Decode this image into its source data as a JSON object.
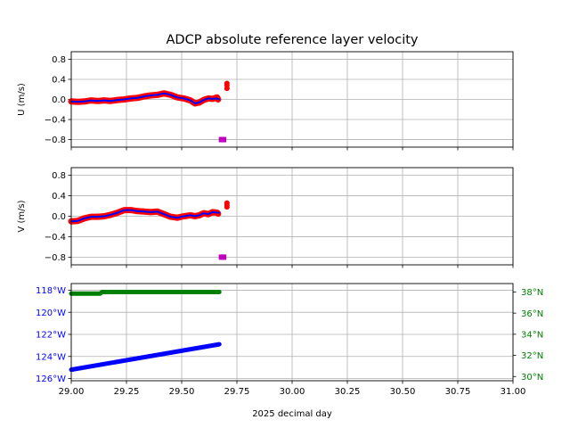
{
  "title": "ADCP absolute reference layer velocity",
  "colors": {
    "u_points": "#ff0000",
    "u_line": "#0000ff",
    "flag": "#bf00bf",
    "lon": "#0000ff",
    "lat": "#008000",
    "grid": "#b0b0b0"
  },
  "chart_data": [
    {
      "panel": "u",
      "type": "line",
      "ylabel": "U (m/s)",
      "xlabel": "",
      "xlim": [
        29.0,
        31.0
      ],
      "ylim": [
        -0.95,
        0.95
      ],
      "yticks": [
        -0.8,
        -0.4,
        0.0,
        0.4,
        0.8
      ],
      "ytick_labels": [
        "−0.8",
        "−0.4",
        "0.0",
        "0.4",
        "0.8"
      ],
      "grid": true,
      "series": [
        {
          "style": "red-points",
          "x": [
            29.0,
            29.03,
            29.06,
            29.09,
            29.12,
            29.15,
            29.18,
            29.21,
            29.24,
            29.27,
            29.3,
            29.33,
            29.36,
            29.39,
            29.42,
            29.45,
            29.48,
            29.51,
            29.54,
            29.56,
            29.58,
            29.6,
            29.62,
            29.64,
            29.66,
            29.665
          ],
          "values": [
            -0.04,
            -0.05,
            -0.04,
            -0.02,
            -0.03,
            -0.02,
            -0.03,
            -0.01,
            0.0,
            0.02,
            0.03,
            0.06,
            0.08,
            0.09,
            0.12,
            0.09,
            0.04,
            0.02,
            -0.02,
            -0.08,
            -0.06,
            -0.01,
            0.02,
            0.01,
            0.04,
            0.0
          ]
        },
        {
          "style": "blue-line",
          "x": [
            29.0,
            29.03,
            29.06,
            29.09,
            29.12,
            29.15,
            29.18,
            29.21,
            29.24,
            29.27,
            29.3,
            29.33,
            29.36,
            29.39,
            29.42,
            29.45,
            29.48,
            29.51,
            29.54,
            29.56,
            29.58,
            29.6,
            29.62,
            29.64,
            29.66,
            29.67
          ],
          "values": [
            -0.04,
            -0.05,
            -0.04,
            -0.02,
            -0.03,
            -0.02,
            -0.03,
            -0.01,
            0.0,
            0.02,
            0.03,
            0.06,
            0.08,
            0.09,
            0.12,
            0.09,
            0.04,
            0.02,
            -0.02,
            -0.08,
            -0.06,
            -0.01,
            0.02,
            0.01,
            0.02,
            0.0
          ]
        },
        {
          "style": "red-dots",
          "x": [
            29.705,
            29.705,
            29.705
          ],
          "values": [
            0.22,
            0.28,
            0.32
          ]
        },
        {
          "style": "magenta-squares",
          "x": [
            29.68,
            29.69
          ],
          "values": [
            -0.8,
            -0.8
          ]
        }
      ]
    },
    {
      "panel": "v",
      "type": "line",
      "ylabel": "V (m/s)",
      "xlabel": "",
      "xlim": [
        29.0,
        31.0
      ],
      "ylim": [
        -0.95,
        0.95
      ],
      "yticks": [
        -0.8,
        -0.4,
        0.0,
        0.4,
        0.8
      ],
      "ytick_labels": [
        "−0.8",
        "−0.4",
        "0.0",
        "0.4",
        "0.8"
      ],
      "grid": true,
      "series": [
        {
          "style": "red-points",
          "x": [
            29.0,
            29.03,
            29.06,
            29.09,
            29.12,
            29.15,
            29.18,
            29.21,
            29.24,
            29.27,
            29.3,
            29.33,
            29.36,
            29.39,
            29.42,
            29.45,
            29.48,
            29.51,
            29.54,
            29.56,
            29.58,
            29.6,
            29.62,
            29.64,
            29.66,
            29.665
          ],
          "values": [
            -0.1,
            -0.09,
            -0.04,
            -0.01,
            -0.01,
            0.0,
            0.03,
            0.07,
            0.12,
            0.12,
            0.1,
            0.09,
            0.08,
            0.09,
            0.04,
            -0.01,
            -0.03,
            0.0,
            0.02,
            0.0,
            0.02,
            0.06,
            0.04,
            0.08,
            0.07,
            0.05
          ]
        },
        {
          "style": "blue-line",
          "x": [
            29.0,
            29.03,
            29.06,
            29.09,
            29.12,
            29.15,
            29.18,
            29.21,
            29.24,
            29.27,
            29.3,
            29.33,
            29.36,
            29.39,
            29.42,
            29.45,
            29.48,
            29.51,
            29.54,
            29.56,
            29.58,
            29.6,
            29.62,
            29.64,
            29.66,
            29.67
          ],
          "values": [
            -0.1,
            -0.09,
            -0.04,
            -0.01,
            -0.01,
            0.0,
            0.03,
            0.07,
            0.12,
            0.12,
            0.1,
            0.09,
            0.08,
            0.09,
            0.04,
            -0.01,
            -0.03,
            0.0,
            0.02,
            0.0,
            0.02,
            0.06,
            0.04,
            0.08,
            0.07,
            0.07
          ]
        },
        {
          "style": "red-dots",
          "x": [
            29.705,
            29.705,
            29.705
          ],
          "values": [
            0.18,
            0.22,
            0.26
          ]
        },
        {
          "style": "magenta-squares",
          "x": [
            29.68,
            29.69
          ],
          "values": [
            -0.8,
            -0.8
          ]
        }
      ]
    },
    {
      "panel": "position",
      "type": "scatter",
      "xlabel": "2025 decimal day",
      "xlim": [
        29.0,
        31.0
      ],
      "xticks": [
        29.0,
        29.25,
        29.5,
        29.75,
        30.0,
        30.25,
        30.5,
        30.75,
        31.0
      ],
      "xtick_labels": [
        "29.00",
        "29.25",
        "29.50",
        "29.75",
        "30.00",
        "30.25",
        "30.50",
        "30.75",
        "31.00"
      ],
      "left_axis": {
        "ylim": [
          -126.2,
          -117.4
        ],
        "yticks": [
          -118,
          -120,
          -122,
          -124,
          -126
        ],
        "ytick_labels": [
          "118°W",
          "120°W",
          "122°W",
          "124°W",
          "126°W"
        ]
      },
      "right_axis": {
        "ylim": [
          29.6,
          38.8
        ],
        "yticks": [
          30,
          32,
          34,
          36,
          38
        ],
        "ytick_labels": [
          "30°N",
          "32°N",
          "34°N",
          "36°N",
          "38°N"
        ]
      },
      "grid": true,
      "series": [
        {
          "style": "blue-dots",
          "axis": "left",
          "x": [
            29.0,
            29.67
          ],
          "values": [
            -125.2,
            -122.9
          ]
        },
        {
          "style": "green-dots",
          "axis": "right",
          "x": [
            29.0,
            29.13,
            29.14,
            29.67
          ],
          "values": [
            37.85,
            37.85,
            38.0,
            38.0
          ]
        }
      ]
    }
  ]
}
